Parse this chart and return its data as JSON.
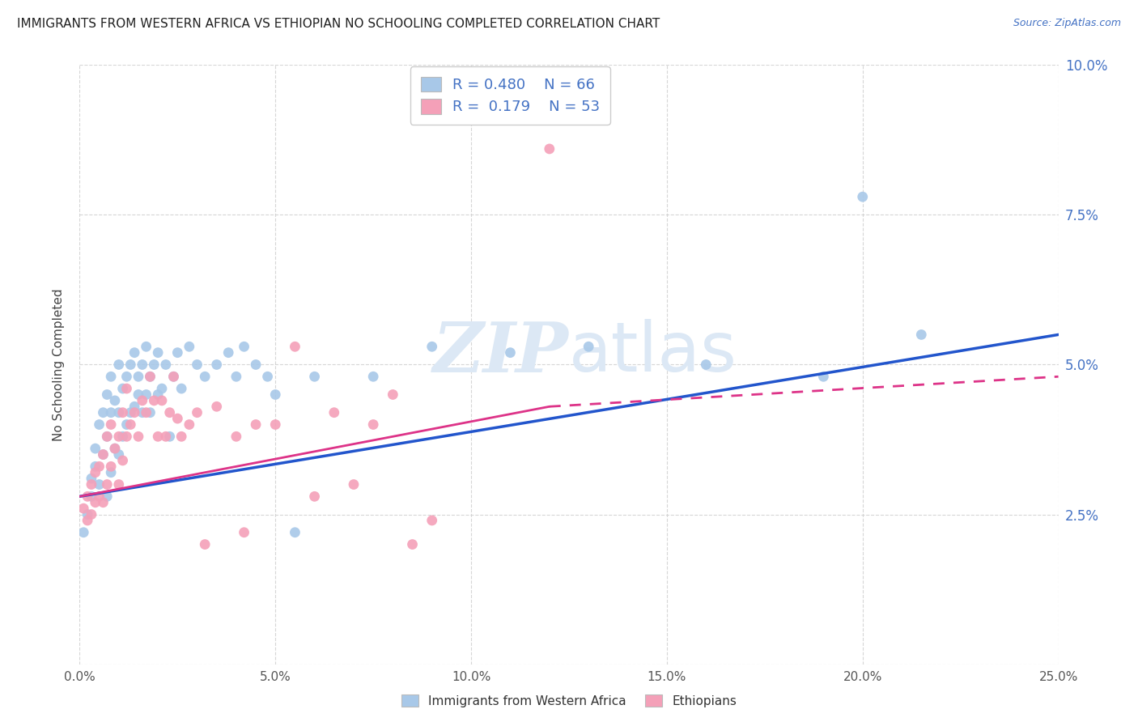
{
  "title": "IMMIGRANTS FROM WESTERN AFRICA VS ETHIOPIAN NO SCHOOLING COMPLETED CORRELATION CHART",
  "source": "Source: ZipAtlas.com",
  "ylabel": "No Schooling Completed",
  "xlim": [
    0.0,
    0.25
  ],
  "ylim": [
    0.0,
    0.1
  ],
  "xticks": [
    0.0,
    0.05,
    0.1,
    0.15,
    0.2,
    0.25
  ],
  "yticks": [
    0.0,
    0.025,
    0.05,
    0.075,
    0.1
  ],
  "xticklabels": [
    "0.0%",
    "5.0%",
    "10.0%",
    "15.0%",
    "20.0%",
    "25.0%"
  ],
  "yticklabels": [
    "",
    "2.5%",
    "5.0%",
    "7.5%",
    "10.0%"
  ],
  "blue_R": "0.480",
  "blue_N": "66",
  "pink_R": "0.179",
  "pink_N": "53",
  "blue_color": "#a8c8e8",
  "pink_color": "#f4a0b8",
  "blue_line_color": "#2255cc",
  "pink_line_color": "#dd3388",
  "watermark_color": "#dce8f5",
  "background_color": "#ffffff",
  "grid_color": "#cccccc",
  "legend_color": "#4472c4",
  "blue_x": [
    0.001,
    0.002,
    0.003,
    0.003,
    0.004,
    0.004,
    0.005,
    0.005,
    0.006,
    0.006,
    0.007,
    0.007,
    0.007,
    0.008,
    0.008,
    0.008,
    0.009,
    0.009,
    0.01,
    0.01,
    0.01,
    0.011,
    0.011,
    0.012,
    0.012,
    0.013,
    0.013,
    0.014,
    0.014,
    0.015,
    0.015,
    0.016,
    0.016,
    0.017,
    0.017,
    0.018,
    0.018,
    0.019,
    0.02,
    0.02,
    0.021,
    0.022,
    0.023,
    0.024,
    0.025,
    0.026,
    0.028,
    0.03,
    0.032,
    0.035,
    0.038,
    0.04,
    0.042,
    0.045,
    0.048,
    0.05,
    0.055,
    0.06,
    0.075,
    0.09,
    0.11,
    0.13,
    0.16,
    0.19,
    0.2,
    0.215
  ],
  "blue_y": [
    0.022,
    0.025,
    0.031,
    0.028,
    0.033,
    0.036,
    0.03,
    0.04,
    0.035,
    0.042,
    0.028,
    0.038,
    0.045,
    0.032,
    0.042,
    0.048,
    0.036,
    0.044,
    0.035,
    0.042,
    0.05,
    0.038,
    0.046,
    0.04,
    0.048,
    0.042,
    0.05,
    0.043,
    0.052,
    0.045,
    0.048,
    0.042,
    0.05,
    0.045,
    0.053,
    0.042,
    0.048,
    0.05,
    0.045,
    0.052,
    0.046,
    0.05,
    0.038,
    0.048,
    0.052,
    0.046,
    0.053,
    0.05,
    0.048,
    0.05,
    0.052,
    0.048,
    0.053,
    0.05,
    0.048,
    0.045,
    0.022,
    0.048,
    0.048,
    0.053,
    0.052,
    0.053,
    0.05,
    0.048,
    0.078,
    0.055
  ],
  "pink_x": [
    0.001,
    0.002,
    0.002,
    0.003,
    0.003,
    0.004,
    0.004,
    0.005,
    0.005,
    0.006,
    0.006,
    0.007,
    0.007,
    0.008,
    0.008,
    0.009,
    0.01,
    0.01,
    0.011,
    0.011,
    0.012,
    0.012,
    0.013,
    0.014,
    0.015,
    0.016,
    0.017,
    0.018,
    0.019,
    0.02,
    0.021,
    0.022,
    0.023,
    0.024,
    0.025,
    0.026,
    0.028,
    0.03,
    0.032,
    0.035,
    0.04,
    0.042,
    0.045,
    0.05,
    0.055,
    0.06,
    0.065,
    0.07,
    0.075,
    0.08,
    0.085,
    0.09,
    0.12
  ],
  "pink_y": [
    0.026,
    0.028,
    0.024,
    0.025,
    0.03,
    0.027,
    0.032,
    0.028,
    0.033,
    0.027,
    0.035,
    0.03,
    0.038,
    0.033,
    0.04,
    0.036,
    0.03,
    0.038,
    0.034,
    0.042,
    0.038,
    0.046,
    0.04,
    0.042,
    0.038,
    0.044,
    0.042,
    0.048,
    0.044,
    0.038,
    0.044,
    0.038,
    0.042,
    0.048,
    0.041,
    0.038,
    0.04,
    0.042,
    0.02,
    0.043,
    0.038,
    0.022,
    0.04,
    0.04,
    0.053,
    0.028,
    0.042,
    0.03,
    0.04,
    0.045,
    0.02,
    0.024,
    0.086
  ],
  "blue_line": [
    0.0,
    0.25,
    0.028,
    0.055
  ],
  "pink_line_solid": [
    0.0,
    0.12,
    0.028,
    0.043
  ],
  "pink_line_dash": [
    0.12,
    0.25,
    0.043,
    0.048
  ]
}
